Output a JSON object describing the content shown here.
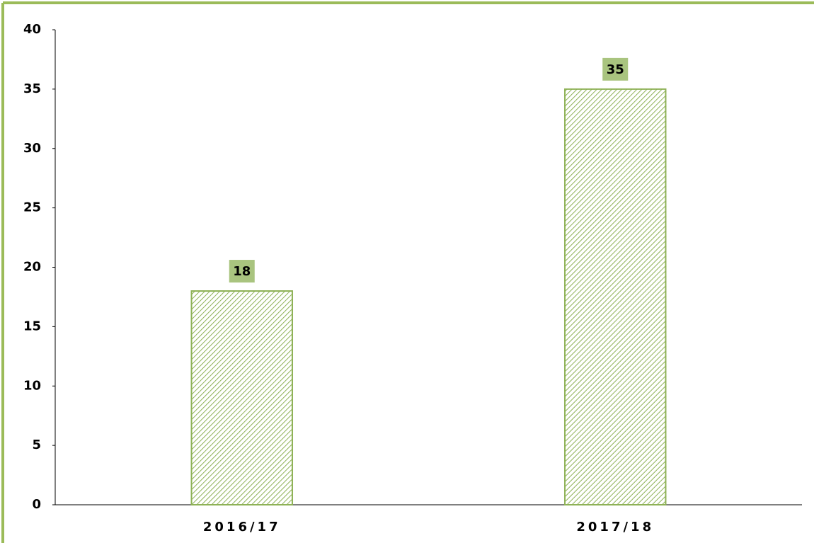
{
  "chart_data": {
    "type": "bar",
    "categories": [
      "2016/17",
      "2017/18"
    ],
    "values": [
      18,
      35
    ],
    "color": "#8db155",
    "ylim": [
      0,
      40
    ],
    "yticks": [
      0,
      5,
      10,
      15,
      20,
      25,
      30,
      35,
      40
    ],
    "grid": false
  }
}
